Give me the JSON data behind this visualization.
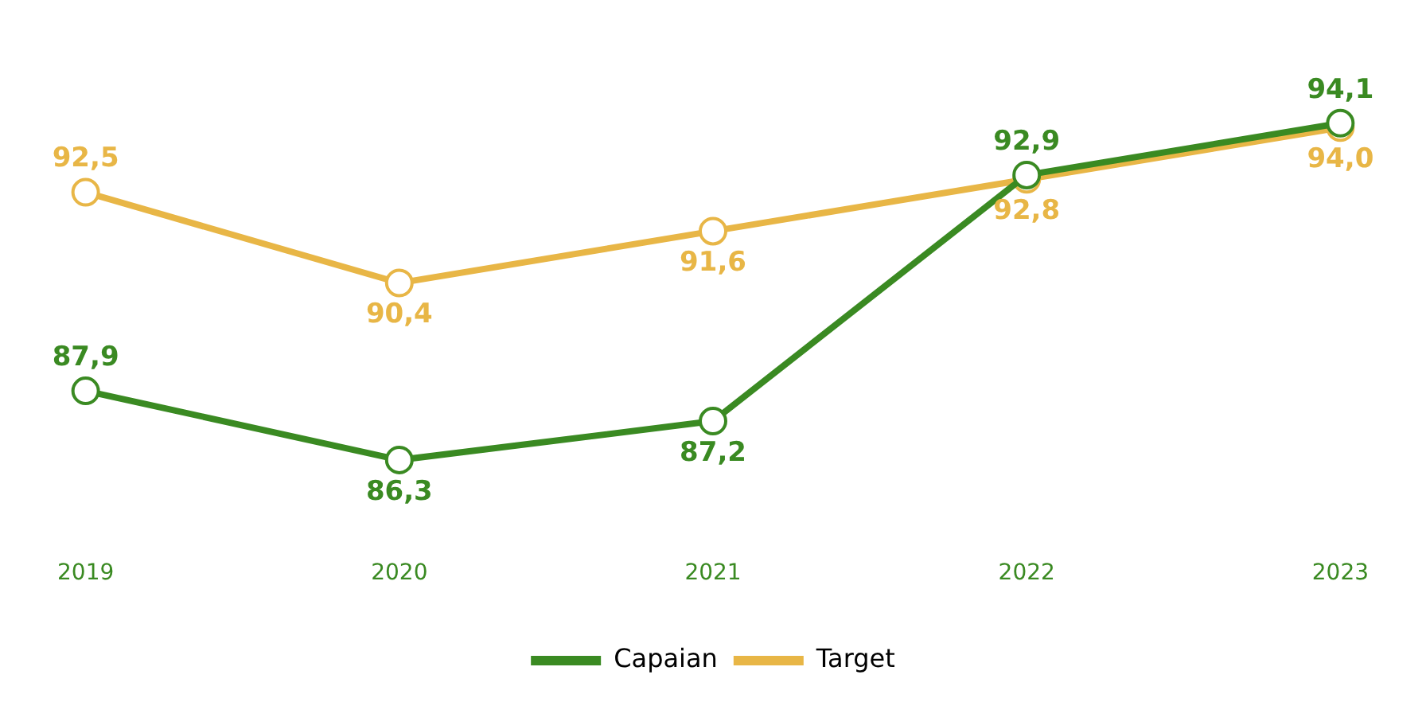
{
  "chart_data": {
    "type": "line",
    "categories": [
      "2019",
      "2020",
      "2021",
      "2022",
      "2023"
    ],
    "series": [
      {
        "name": "Capaian",
        "color": "#3a8a22",
        "values": [
          87.9,
          86.3,
          87.2,
          92.9,
          94.1
        ],
        "value_labels": [
          "87,9",
          "86,3",
          "87,2",
          "92,9",
          "94,1"
        ]
      },
      {
        "name": "Target",
        "color": "#e8b646",
        "values": [
          92.5,
          90.4,
          91.6,
          92.8,
          94.0
        ],
        "value_labels": [
          "92,5",
          "90,4",
          "91,6",
          "92,8",
          "94,0"
        ]
      }
    ],
    "marker": "circle",
    "legend": "bottom",
    "grid": false,
    "tick_labels": "x"
  }
}
